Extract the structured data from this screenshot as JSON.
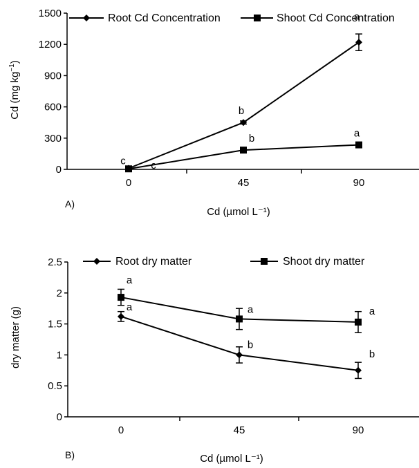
{
  "chart_data": [
    {
      "type": "line",
      "panel_label": "A)",
      "x": [
        "0",
        "45",
        "90"
      ],
      "xlabel": "Cd (µmol L⁻¹)",
      "ylabel_main": "Cd (mg kg",
      "ylabel_sup": "−1",
      "ylabel_end": ")",
      "ylim": [
        0,
        1500
      ],
      "yticks": [
        "0",
        "300",
        "600",
        "900",
        "1200",
        "1500"
      ],
      "grid": false,
      "legend_position": "top",
      "series": [
        {
          "name": "Root Cd Concentration",
          "marker": "diamond",
          "values": [
            10,
            450,
            1220
          ],
          "errors": [
            5,
            15,
            80
          ],
          "labels": [
            "c",
            "b",
            "a"
          ]
        },
        {
          "name": "Shoot Cd Concentration",
          "marker": "square",
          "values": [
            5,
            185,
            235
          ],
          "errors": [
            3,
            10,
            15
          ],
          "labels": [
            "c",
            "b",
            "a"
          ]
        }
      ]
    },
    {
      "type": "line",
      "panel_label": "B)",
      "x": [
        "0",
        "45",
        "90"
      ],
      "xlabel": "Cd (µmol L⁻¹)",
      "ylabel": "dry matter (g)",
      "ylim": [
        0,
        2.5
      ],
      "yticks": [
        "0",
        "0.5",
        "1",
        "1.5",
        "2",
        "2.5"
      ],
      "grid": false,
      "legend_position": "top",
      "series": [
        {
          "name": "Root dry matter",
          "marker": "diamond",
          "values": [
            1.62,
            1.0,
            0.75
          ],
          "errors": [
            0.08,
            0.13,
            0.13
          ],
          "labels": [
            "a",
            "b",
            "b"
          ]
        },
        {
          "name": "Shoot dry matter",
          "marker": "square",
          "values": [
            1.93,
            1.58,
            1.53
          ],
          "errors": [
            0.13,
            0.17,
            0.17
          ],
          "labels": [
            "a",
            "a",
            "a"
          ]
        }
      ]
    }
  ],
  "colors": {
    "line": "#000000",
    "background": "#ffffff"
  }
}
